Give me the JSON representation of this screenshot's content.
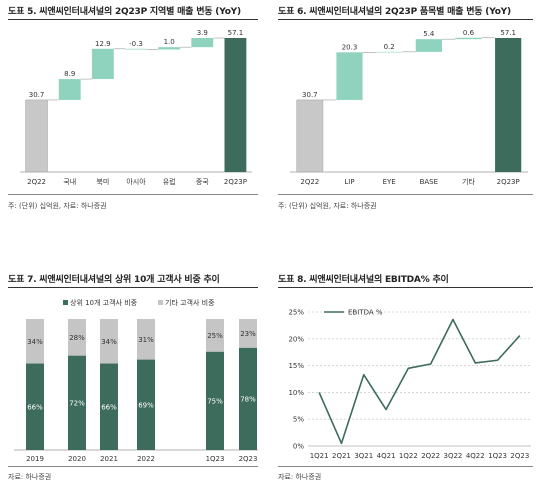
{
  "colors": {
    "gray": "#c8c8c8",
    "mint": "#8fd3bf",
    "dark_green": "#3d6b5c",
    "stack_top": "#c5c5c5",
    "line": "#3d6b5c",
    "grid": "#bfbfbf"
  },
  "panels": {
    "p5": {
      "title": "도표 5. 씨앤씨인터내셔널의 2Q23P 지역별 매출 변동 (YoY)",
      "source": "주: (단위) 십억원, 자료: 하나증권"
    },
    "p6": {
      "title": "도표 6. 씨앤씨인터내셔널의 2Q23P 품목별 매출 변동 (YoY)",
      "source": "주: (단위) 십억원, 자료: 하나증권"
    },
    "p7": {
      "title": "도표 7. 씨앤씨인터내셔널의 상위 10개 고객사 비중 추이",
      "source": "자료: 하나증권"
    },
    "p8": {
      "title": "도표 8. 씨앤씨인터내셔널의 EBITDA% 추이",
      "source": "자료: 하나증권"
    }
  },
  "chart_data": [
    {
      "id": "p5",
      "type": "bar",
      "subtype": "waterfall",
      "categories": [
        "2Q22",
        "국내",
        "북미",
        "아시아",
        "유럽",
        "중국",
        "2Q23P"
      ],
      "values": [
        30.7,
        8.9,
        12.9,
        -0.3,
        1.0,
        3.9,
        57.1
      ],
      "labels": [
        "30.7",
        "8.9",
        "12.9",
        "-0.3",
        "1.0",
        "3.9",
        "57.1"
      ],
      "bar_kind": [
        "total",
        "delta",
        "delta",
        "delta",
        "delta",
        "delta",
        "total"
      ],
      "ylim": [
        0,
        57.1
      ]
    },
    {
      "id": "p6",
      "type": "bar",
      "subtype": "waterfall",
      "categories": [
        "2Q22",
        "LIP",
        "EYE",
        "BASE",
        "기타",
        "2Q23P"
      ],
      "values": [
        30.7,
        20.3,
        0.2,
        5.4,
        0.6,
        57.1
      ],
      "labels": [
        "30.7",
        "20.3",
        "0.2",
        "5.4",
        "0.6",
        "57.1"
      ],
      "bar_kind": [
        "total",
        "delta",
        "delta",
        "delta",
        "delta",
        "total"
      ],
      "ylim": [
        0,
        57.1
      ]
    },
    {
      "id": "p7",
      "type": "bar",
      "subtype": "stacked-100",
      "categories": [
        "2019",
        "2020",
        "2021",
        "2022",
        "1Q23",
        "2Q23"
      ],
      "gap_after_index": 3,
      "legend_position": "top",
      "series": [
        {
          "name": "상위 10개 고객사 비중",
          "values": [
            66,
            72,
            66,
            69,
            75,
            78
          ],
          "labels": [
            "66%",
            "72%",
            "66%",
            "69%",
            "75%",
            "78%"
          ]
        },
        {
          "name": "기타 고객사 비중",
          "values": [
            34,
            28,
            34,
            31,
            25,
            23
          ],
          "labels": [
            "34%",
            "28%",
            "34%",
            "31%",
            "25%",
            "23%"
          ]
        }
      ],
      "ylim": [
        0,
        100
      ]
    },
    {
      "id": "p8",
      "type": "line",
      "categories": [
        "1Q21",
        "2Q21",
        "3Q21",
        "4Q21",
        "1Q22",
        "2Q22",
        "3Q22",
        "4Q22",
        "1Q23",
        "2Q23"
      ],
      "series": [
        {
          "name": "EBITDA %",
          "values": [
            10.0,
            0.5,
            13.3,
            6.8,
            14.5,
            15.3,
            23.6,
            15.5,
            16.0,
            20.6
          ]
        }
      ],
      "yticks": [
        "0%",
        "5%",
        "10%",
        "15%",
        "20%",
        "25%"
      ],
      "ylim": [
        0,
        25
      ],
      "grid": true,
      "legend_position": "top-left"
    }
  ]
}
